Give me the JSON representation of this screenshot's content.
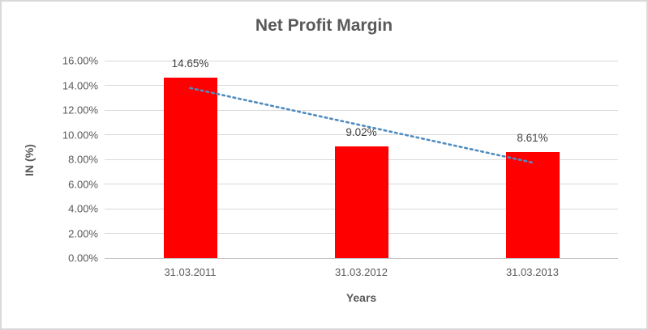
{
  "chart_data": {
    "type": "bar",
    "title": "Net Profit Margin",
    "xlabel": "Years",
    "ylabel": "IN (%)",
    "categories": [
      "31.03.2011",
      "31.03.2012",
      "31.03.2013"
    ],
    "values": [
      14.65,
      9.02,
      8.61
    ],
    "data_labels": [
      "14.65%",
      "9.02%",
      "8.61%"
    ],
    "yticks": [
      "0.00%",
      "2.00%",
      "4.00%",
      "6.00%",
      "8.00%",
      "10.00%",
      "12.00%",
      "14.00%",
      "16.00%"
    ],
    "ylim": [
      0,
      16
    ],
    "grid": true,
    "legend": "none",
    "bar_color": "#ff0000",
    "text_color": "#595959",
    "gridline_color": "#d9d9d9",
    "trendline": {
      "type": "linear",
      "style": "dotted",
      "color": "#4f8cbf",
      "start_value": 13.78,
      "end_value": 7.74
    }
  }
}
